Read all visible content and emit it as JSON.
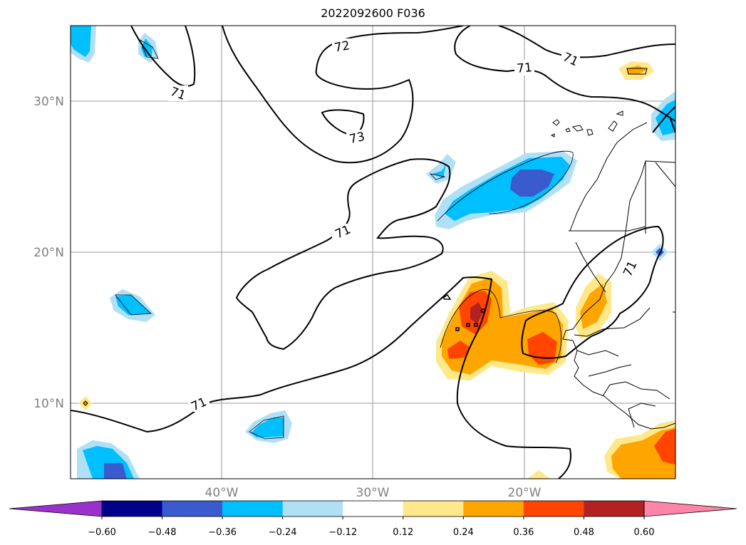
{
  "title": "2022092600 F036",
  "map": {
    "lat_labels": [
      "30°N",
      "20°N",
      "10°N"
    ],
    "lon_labels": [
      "40°W",
      "30°W",
      "20°W"
    ],
    "contour_labels": [
      "72",
      "71",
      "73",
      "71",
      "71",
      "71",
      "71",
      "71"
    ]
  },
  "colorbar": {
    "ticks": [
      "−0.60",
      "−0.48",
      "−0.36",
      "−0.24",
      "−0.12",
      "0.12",
      "0.24",
      "0.36",
      "0.48",
      "0.60"
    ],
    "colors": [
      "#9932cc",
      "#00008b",
      "#3a5bcd",
      "#00bfff",
      "#b0e0f6",
      "#ffffff",
      "#ffe88a",
      "#ffa500",
      "#ff4500",
      "#b22222",
      "#ff85a8"
    ]
  }
}
